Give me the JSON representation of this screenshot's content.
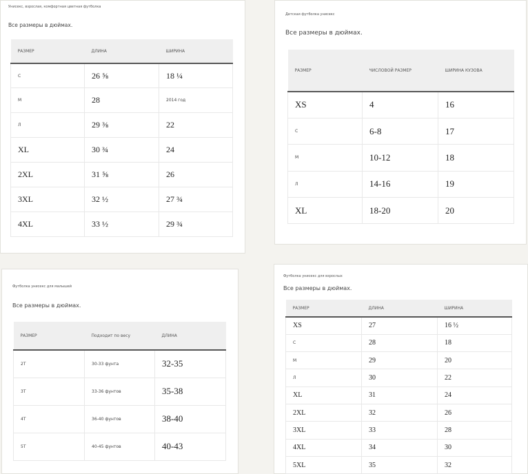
{
  "panels": [
    {
      "title": "Унисекс, взрослая, комфортная цветная футболка",
      "note": "Все размеры в дюймах.",
      "table": {
        "headers": [
          "РАЗМЕР",
          "ДЛИНА",
          "ШИРИНА"
        ],
        "rows": [
          [
            "С",
            "26 ⅝",
            "18 ¼"
          ],
          [
            "М",
            "28",
            "2014 год"
          ],
          [
            "Л",
            "29 ⅜",
            "22"
          ],
          [
            "XL",
            "30 ¾",
            "24"
          ],
          [
            "2XL",
            "31 ⅝",
            "26"
          ],
          [
            "3XL",
            "32 ½",
            "27 ¾"
          ],
          [
            "4XL",
            "33 ½",
            "29 ¾"
          ]
        ]
      }
    },
    {
      "title": "Детская футболка унисекс",
      "note": "Все размеры в дюймах.",
      "table": {
        "headers": [
          "РАЗМЕР",
          "ЧИСЛОВОЙ РАЗМЕР",
          "ШИРИНА КУЗОВА"
        ],
        "rows": [
          [
            "XS",
            "4",
            "16"
          ],
          [
            "С",
            "6-8",
            "17"
          ],
          [
            "М",
            "10-12",
            "18"
          ],
          [
            "Л",
            "14-16",
            "19"
          ],
          [
            "XL",
            "18-20",
            "20"
          ]
        ]
      }
    },
    {
      "title": "Футболка унисекс для малышей",
      "note": "Все размеры в дюймах.",
      "table": {
        "headers": [
          "РАЗМЕР",
          "Подходит по весу",
          "ДЛИНА"
        ],
        "rows": [
          [
            "2T",
            "30-33 фунта",
            "32-35"
          ],
          [
            "3T",
            "33-36 фунтов",
            "35-38"
          ],
          [
            "4T",
            "36-40 фунтов",
            "38-40"
          ],
          [
            "5T",
            "40-45 фунтов",
            "40-43"
          ]
        ]
      }
    },
    {
      "title": "Футболка унисекс для взрослых",
      "note": "Все размеры в дюймах.",
      "table": {
        "headers": [
          "РАЗМЕР",
          "ДЛИНА",
          "ШИРИНА"
        ],
        "rows": [
          [
            "XS",
            "27",
            "16 ½"
          ],
          [
            "С",
            "28",
            "18"
          ],
          [
            "М",
            "29",
            "20"
          ],
          [
            "Л",
            "30",
            "22"
          ],
          [
            "XL",
            "31",
            "24"
          ],
          [
            "2XL",
            "32",
            "26"
          ],
          [
            "3XL",
            "33",
            "28"
          ],
          [
            "4XL",
            "34",
            "30"
          ],
          [
            "5XL",
            "35",
            "32"
          ]
        ]
      }
    }
  ]
}
